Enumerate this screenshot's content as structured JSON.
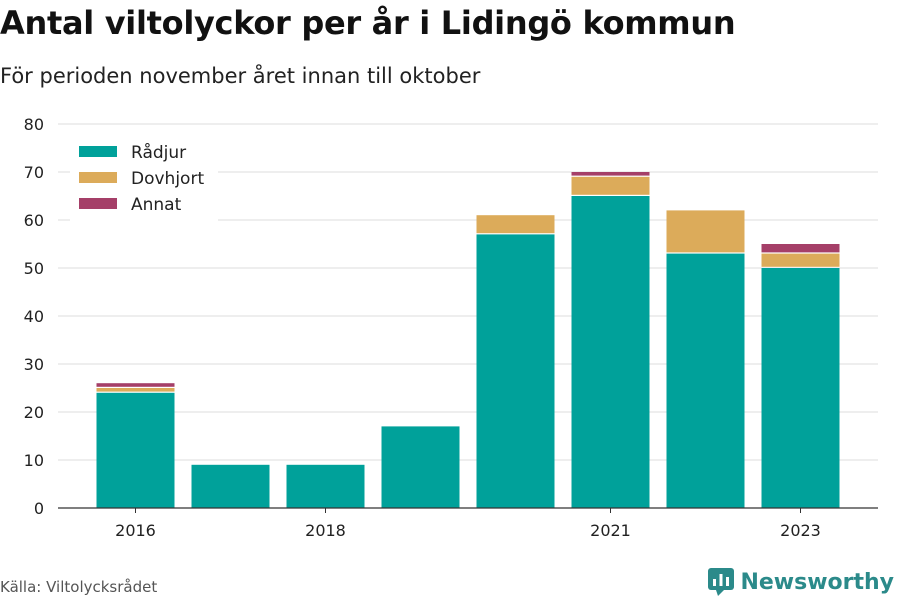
{
  "title": "Antal viltolyckor per år i Lidingö kommun",
  "subtitle": "För perioden november året innan till oktober",
  "source": "Källa: Viltolycksrådet",
  "brand": {
    "name": "Newsworthy",
    "icon": "newsworthy-logo-icon",
    "color": "#2b8a8a"
  },
  "chart_data": {
    "type": "bar",
    "stacked": true,
    "title": "Antal viltolyckor per år i Lidingö kommun",
    "subtitle": "För perioden november året innan till oktober",
    "categories": [
      "2016",
      "2017",
      "2018",
      "2019",
      "2020",
      "2021",
      "2022",
      "2023"
    ],
    "tick_labels": [
      "2016",
      "",
      "2018",
      "",
      "",
      "2021",
      "",
      "2023"
    ],
    "series": [
      {
        "name": "Rådjur",
        "color": "#00a19a",
        "values": [
          24,
          9,
          9,
          17,
          57,
          65,
          53,
          50
        ]
      },
      {
        "name": "Dovhjort",
        "color": "#dcab5a",
        "values": [
          1,
          0,
          0,
          0,
          4,
          4,
          9,
          3
        ]
      },
      {
        "name": "Annat",
        "color": "#a53f68",
        "values": [
          1,
          0,
          0,
          0,
          0,
          1,
          0,
          2
        ]
      }
    ],
    "ylim": [
      0,
      80
    ],
    "yticks": [
      0,
      10,
      20,
      30,
      40,
      50,
      60,
      70,
      80
    ],
    "xlabel": "",
    "ylabel": "",
    "grid": true,
    "legend_position": "top-left"
  }
}
